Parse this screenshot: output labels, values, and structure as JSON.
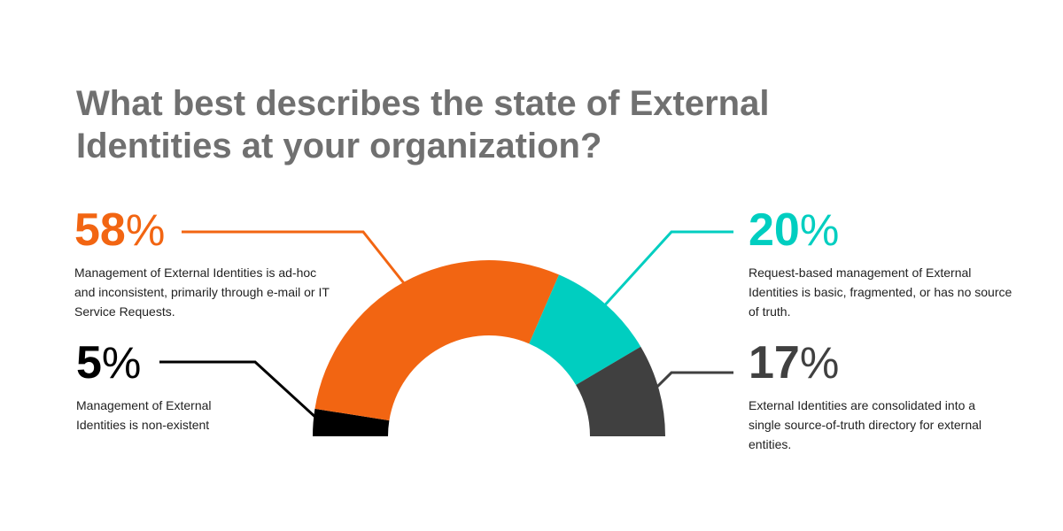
{
  "title": "What best describes the state of External Identities at your organization?",
  "colors": {
    "adhoc": "#F26512",
    "request": "#00CEC0",
    "consolidated": "#404040",
    "nonexistent": "#000000",
    "title": "#707070"
  },
  "callouts": {
    "adhoc": {
      "value": "58",
      "sign": "%",
      "desc": "Management of External Identities is ad-hoc and inconsistent, primarily through e-mail or IT Service Requests."
    },
    "request": {
      "value": "20",
      "sign": "%",
      "desc": "Request-based management of External Identities is basic, fragmented, or has no source of truth."
    },
    "nonexistent": {
      "value": "5",
      "sign": "%",
      "desc": "Management of External Identities is non-existent"
    },
    "consolidated": {
      "value": "17",
      "sign": "%",
      "desc": "External Identities are consolidated into a single source-of-truth directory for external entities."
    }
  },
  "chart_data": {
    "type": "pie",
    "variant": "half-donut",
    "title": "What best describes the state of External Identities at your organization?",
    "unit": "%",
    "slices": [
      {
        "key": "nonexistent",
        "value": 5,
        "color": "#000000"
      },
      {
        "key": "adhoc",
        "value": 58,
        "color": "#F26512"
      },
      {
        "key": "request",
        "value": 20,
        "color": "#00CEC0"
      },
      {
        "key": "consolidated",
        "value": 17,
        "color": "#404040"
      }
    ]
  }
}
